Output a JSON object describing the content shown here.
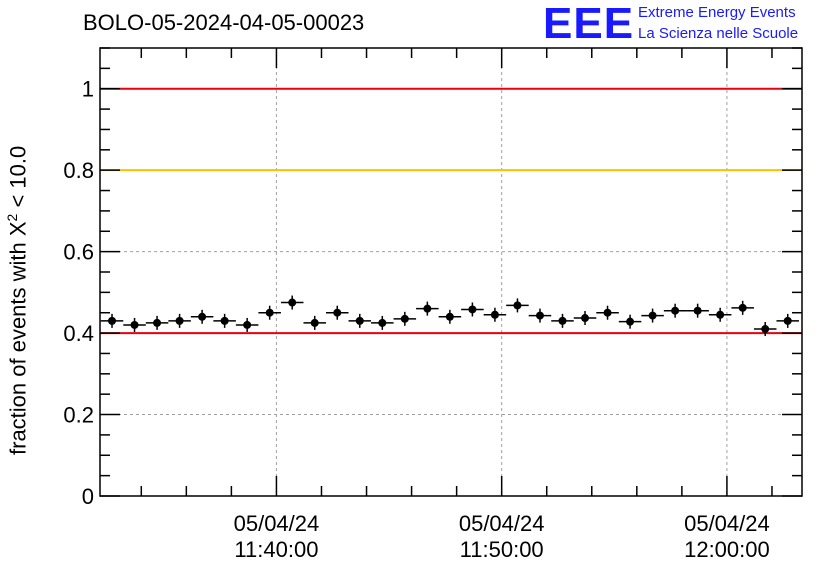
{
  "header": {
    "title": "BOLO-05-2024-04-05-00023",
    "logo_mark": "EEE",
    "logo_line1": "Extreme Energy Events",
    "logo_line2": "La Scienza nelle Scuole"
  },
  "colors": {
    "threshold_red": "#e8000b",
    "threshold_orange": "#ffc000",
    "logo_blue": "#1a1aff",
    "grid": "#a0a0a0",
    "marker": "#000000"
  },
  "chart_data": {
    "type": "scatter",
    "title": "BOLO-05-2024-04-05-00023",
    "ylabel_main": "fraction of events with X",
    "ylabel_sup": "2",
    "ylabel_tail": " < 10.0",
    "xlabel": "",
    "x_unit": "minutes",
    "xlim": [
      "11:32:10",
      "12:03:20"
    ],
    "ylim": [
      0,
      1.1
    ],
    "yticks": [
      0,
      0.2,
      0.4,
      0.6,
      0.8,
      1
    ],
    "ytick_labels": [
      "0",
      "0.2",
      "0.4",
      "0.6",
      "0.8",
      "1"
    ],
    "xticks": [
      "11:40:00",
      "11:50:00",
      "12:00:00"
    ],
    "xtick_labels": [
      {
        "date": "05/04/24",
        "time": "11:40:00"
      },
      {
        "date": "05/04/24",
        "time": "11:50:00"
      },
      {
        "date": "05/04/24",
        "time": "12:00:00"
      }
    ],
    "x": [
      "11:32:42",
      "11:33:42",
      "11:34:42",
      "11:35:42",
      "11:36:42",
      "11:37:42",
      "11:38:42",
      "11:39:42",
      "11:40:42",
      "11:41:42",
      "11:42:42",
      "11:43:42",
      "11:44:42",
      "11:45:42",
      "11:46:42",
      "11:47:42",
      "11:48:42",
      "11:49:42",
      "11:50:42",
      "11:51:42",
      "11:52:42",
      "11:53:42",
      "11:54:42",
      "11:55:42",
      "11:56:42",
      "11:57:42",
      "11:58:42",
      "11:59:42",
      "12:00:42",
      "12:01:42",
      "12:02:42"
    ],
    "y": [
      0.43,
      0.42,
      0.425,
      0.43,
      0.44,
      0.43,
      0.42,
      0.45,
      0.475,
      0.425,
      0.45,
      0.43,
      0.425,
      0.435,
      0.46,
      0.44,
      0.458,
      0.445,
      0.468,
      0.443,
      0.43,
      0.437,
      0.45,
      0.428,
      0.443,
      0.455,
      0.455,
      0.445,
      0.462,
      0.41,
      0.43
    ],
    "x_error_minutes": 0.5,
    "reference_lines": [
      {
        "y": 1.0,
        "color": "#e8000b"
      },
      {
        "y": 0.8,
        "color": "#ffc000"
      },
      {
        "y": 0.4,
        "color": "#e8000b"
      }
    ],
    "grid": true,
    "legend": "none"
  }
}
